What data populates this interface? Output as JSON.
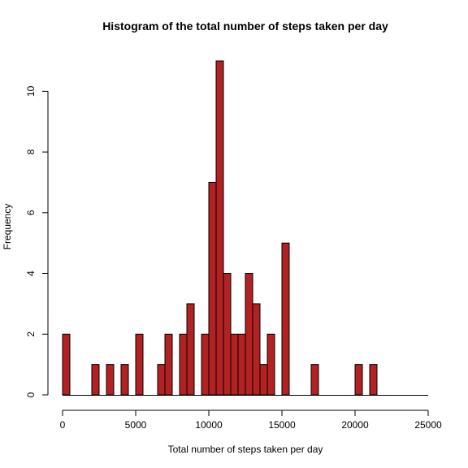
{
  "chart_data": {
    "type": "bar",
    "title": "Histogram of the total number of steps taken per day",
    "xlabel": "Total number of steps taken per day",
    "ylabel": "Frequency",
    "bin_width": 500,
    "xlim": [
      0,
      25000
    ],
    "ylim": [
      0,
      11
    ],
    "x_ticks": [
      0,
      5000,
      10000,
      15000,
      20000,
      25000
    ],
    "y_ticks": [
      0,
      2,
      4,
      6,
      8,
      10
    ],
    "grid": false,
    "bar_color": "#B22222",
    "bins": [
      {
        "start": 0,
        "value": 2
      },
      {
        "start": 2000,
        "value": 1
      },
      {
        "start": 3000,
        "value": 1
      },
      {
        "start": 4000,
        "value": 1
      },
      {
        "start": 5000,
        "value": 2
      },
      {
        "start": 6500,
        "value": 1
      },
      {
        "start": 7000,
        "value": 2
      },
      {
        "start": 8000,
        "value": 2
      },
      {
        "start": 8500,
        "value": 3
      },
      {
        "start": 9500,
        "value": 2
      },
      {
        "start": 10000,
        "value": 7
      },
      {
        "start": 10500,
        "value": 11
      },
      {
        "start": 11000,
        "value": 4
      },
      {
        "start": 11500,
        "value": 2
      },
      {
        "start": 12000,
        "value": 2
      },
      {
        "start": 12500,
        "value": 4
      },
      {
        "start": 13000,
        "value": 3
      },
      {
        "start": 13500,
        "value": 1
      },
      {
        "start": 14000,
        "value": 2
      },
      {
        "start": 15000,
        "value": 5
      },
      {
        "start": 17000,
        "value": 1
      },
      {
        "start": 20000,
        "value": 1
      },
      {
        "start": 21000,
        "value": 1
      }
    ]
  }
}
